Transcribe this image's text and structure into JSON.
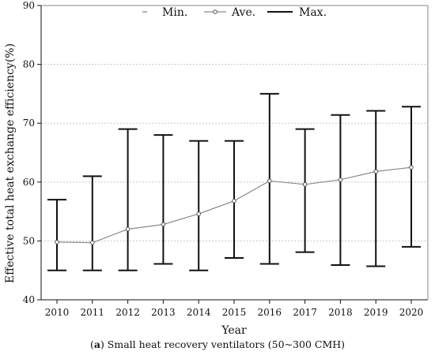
{
  "caption": {
    "open_paren": "(",
    "letter": "a",
    "text": ") Small heat recovery ventilators (50~300 CMH)"
  },
  "chart_data": {
    "type": "line",
    "title": "",
    "xlabel": "Year",
    "ylabel": "Effective total heat exchange efficiency(%)",
    "ylim": [
      40,
      90
    ],
    "yticks": [
      40,
      50,
      60,
      70,
      80,
      90
    ],
    "grid": "horizontal-dotted",
    "legend_placement": "top-center",
    "categories": [
      "2010",
      "2011",
      "2012",
      "2013",
      "2014",
      "2015",
      "2016",
      "2017",
      "2018",
      "2019",
      "2020"
    ],
    "series": [
      {
        "name": "Min.",
        "values": [
          45,
          45,
          45,
          46.1,
          45,
          47.1,
          46.1,
          48.1,
          45.9,
          45.7,
          49
        ]
      },
      {
        "name": "Ave.",
        "values": [
          49.8,
          49.7,
          52,
          52.8,
          54.6,
          56.8,
          60.2,
          59.6,
          60.4,
          61.8,
          62.5
        ]
      },
      {
        "name": "Max.",
        "values": [
          57,
          61,
          69,
          68,
          67,
          67,
          75,
          69,
          71.4,
          72.1,
          72.8
        ]
      }
    ],
    "colors": {
      "axis": "#111111",
      "ave_line": "#8a8a8a",
      "grid": "#c8c8c8"
    }
  }
}
